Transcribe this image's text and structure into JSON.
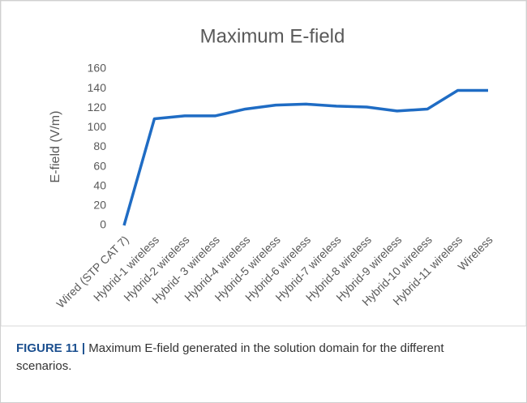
{
  "chart_data": {
    "type": "line",
    "title": "Maximum E-field",
    "ylabel": "E-field (V/m)",
    "categories": [
      "Wired (STP CAT 7)",
      "Hybrid-1 wireless",
      "Hybrid-2 wireless",
      "Hybrid- 3 wireless",
      "Hybrid-4 wireless",
      "Hybrid-5 wireless",
      "Hybrid-6 wireless",
      "Hybrid-7 wireless",
      "Hybrid-8 wireless",
      "Hybrid-9 wireless",
      "Hybrid-10 wireless",
      "Hybrid-11 wireless",
      "Wireless"
    ],
    "series": [
      {
        "name": "Maximum E-field",
        "color": "#1f6cc4",
        "values": [
          0,
          109,
          112,
          112,
          119,
          123,
          124,
          122,
          121,
          117,
          119,
          138,
          138
        ]
      }
    ],
    "ylim": [
      0,
      160
    ],
    "yticks": [
      0,
      20,
      40,
      60,
      80,
      100,
      120,
      140,
      160
    ],
    "grid": false
  },
  "caption": {
    "label": "FIGURE 11 |",
    "text": "Maximum E-field generated in the solution domain for the different scenarios."
  }
}
